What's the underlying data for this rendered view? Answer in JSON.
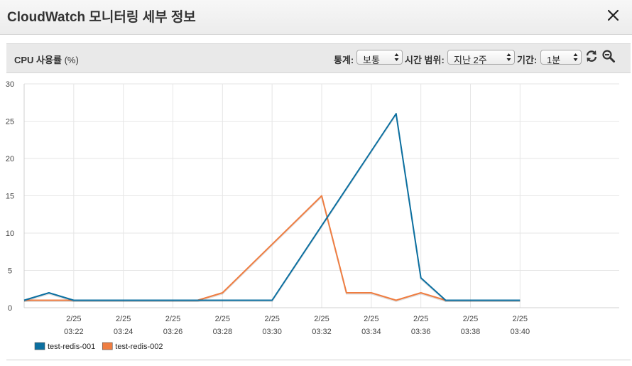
{
  "modal": {
    "title": "CloudWatch 모니터링 세부 정보",
    "close_icon": "close-icon"
  },
  "toolbar": {
    "metric_name": "CPU 사용률",
    "metric_unit": "(%)",
    "stat_label": "통계:",
    "stat_value": "보통",
    "range_label": "시간 범위:",
    "range_value": "지난 2주",
    "period_label": "기간:",
    "period_value": "1분",
    "refresh_icon": "refresh-icon",
    "zoom_icon": "zoom-out-icon"
  },
  "colors": {
    "series1": "#0b6fa0",
    "series2": "#ef7d41",
    "grid": "#e6e6e6"
  },
  "chart_data": {
    "type": "line",
    "ylim": [
      0,
      30
    ],
    "yticks": [
      0,
      5,
      10,
      15,
      20,
      25,
      30
    ],
    "xlim": [
      "03:20",
      "03:44"
    ],
    "xticks": [
      {
        "top": "2/25",
        "bottom": "03:22"
      },
      {
        "top": "2/25",
        "bottom": "03:24"
      },
      {
        "top": "2/25",
        "bottom": "03:26"
      },
      {
        "top": "2/25",
        "bottom": "03:28"
      },
      {
        "top": "2/25",
        "bottom": "03:30"
      },
      {
        "top": "2/25",
        "bottom": "03:32"
      },
      {
        "top": "2/25",
        "bottom": "03:34"
      },
      {
        "top": "2/25",
        "bottom": "03:36"
      },
      {
        "top": "2/25",
        "bottom": "03:38"
      },
      {
        "top": "2/25",
        "bottom": "03:40"
      }
    ],
    "grid": true,
    "legend": "bottom-left",
    "series": [
      {
        "name": "test-redis-001",
        "color": "#0b6fa0",
        "points": [
          {
            "x": "03:20",
            "y": 1
          },
          {
            "x": "03:21",
            "y": 2
          },
          {
            "x": "03:22",
            "y": 1
          },
          {
            "x": "03:30",
            "y": 1
          },
          {
            "x": "03:35",
            "y": 26
          },
          {
            "x": "03:36",
            "y": 4
          },
          {
            "x": "03:37",
            "y": 1
          },
          {
            "x": "03:40",
            "y": 1
          }
        ]
      },
      {
        "name": "test-redis-002",
        "color": "#ef7d41",
        "points": [
          {
            "x": "03:20",
            "y": 1
          },
          {
            "x": "03:27",
            "y": 1
          },
          {
            "x": "03:28",
            "y": 2
          },
          {
            "x": "03:32",
            "y": 15
          },
          {
            "x": "03:33",
            "y": 2
          },
          {
            "x": "03:34",
            "y": 2
          },
          {
            "x": "03:35",
            "y": 1
          },
          {
            "x": "03:36",
            "y": 2
          },
          {
            "x": "03:37",
            "y": 1
          },
          {
            "x": "03:40",
            "y": 1
          }
        ]
      }
    ]
  }
}
